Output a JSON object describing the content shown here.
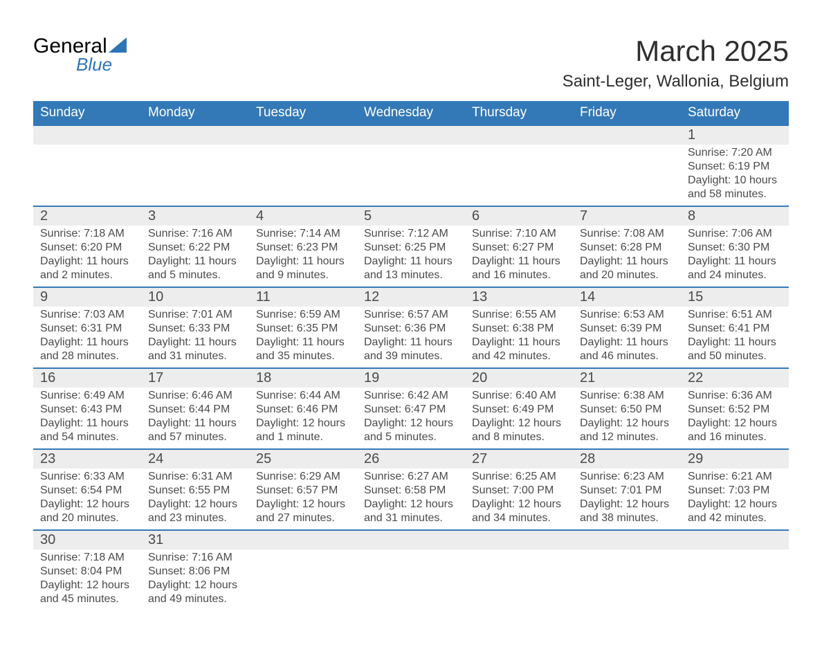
{
  "logo": {
    "text1": "General",
    "text2": "Blue"
  },
  "header": {
    "month_title": "March 2025",
    "location": "Saint-Leger, Wallonia, Belgium"
  },
  "colors": {
    "header_bg": "#3379b7",
    "header_text": "#ffffff",
    "daynum_bg": "#ededed",
    "row_border": "#3379b7",
    "text": "#4a4a4a",
    "logo_accent": "#2e75b6"
  },
  "weekdays": [
    "Sunday",
    "Monday",
    "Tuesday",
    "Wednesday",
    "Thursday",
    "Friday",
    "Saturday"
  ],
  "weeks": [
    [
      null,
      null,
      null,
      null,
      null,
      null,
      {
        "n": "1",
        "sr": "Sunrise: 7:20 AM",
        "ss": "Sunset: 6:19 PM",
        "dl1": "Daylight: 10 hours",
        "dl2": "and 58 minutes."
      }
    ],
    [
      {
        "n": "2",
        "sr": "Sunrise: 7:18 AM",
        "ss": "Sunset: 6:20 PM",
        "dl1": "Daylight: 11 hours",
        "dl2": "and 2 minutes."
      },
      {
        "n": "3",
        "sr": "Sunrise: 7:16 AM",
        "ss": "Sunset: 6:22 PM",
        "dl1": "Daylight: 11 hours",
        "dl2": "and 5 minutes."
      },
      {
        "n": "4",
        "sr": "Sunrise: 7:14 AM",
        "ss": "Sunset: 6:23 PM",
        "dl1": "Daylight: 11 hours",
        "dl2": "and 9 minutes."
      },
      {
        "n": "5",
        "sr": "Sunrise: 7:12 AM",
        "ss": "Sunset: 6:25 PM",
        "dl1": "Daylight: 11 hours",
        "dl2": "and 13 minutes."
      },
      {
        "n": "6",
        "sr": "Sunrise: 7:10 AM",
        "ss": "Sunset: 6:27 PM",
        "dl1": "Daylight: 11 hours",
        "dl2": "and 16 minutes."
      },
      {
        "n": "7",
        "sr": "Sunrise: 7:08 AM",
        "ss": "Sunset: 6:28 PM",
        "dl1": "Daylight: 11 hours",
        "dl2": "and 20 minutes."
      },
      {
        "n": "8",
        "sr": "Sunrise: 7:06 AM",
        "ss": "Sunset: 6:30 PM",
        "dl1": "Daylight: 11 hours",
        "dl2": "and 24 minutes."
      }
    ],
    [
      {
        "n": "9",
        "sr": "Sunrise: 7:03 AM",
        "ss": "Sunset: 6:31 PM",
        "dl1": "Daylight: 11 hours",
        "dl2": "and 28 minutes."
      },
      {
        "n": "10",
        "sr": "Sunrise: 7:01 AM",
        "ss": "Sunset: 6:33 PM",
        "dl1": "Daylight: 11 hours",
        "dl2": "and 31 minutes."
      },
      {
        "n": "11",
        "sr": "Sunrise: 6:59 AM",
        "ss": "Sunset: 6:35 PM",
        "dl1": "Daylight: 11 hours",
        "dl2": "and 35 minutes."
      },
      {
        "n": "12",
        "sr": "Sunrise: 6:57 AM",
        "ss": "Sunset: 6:36 PM",
        "dl1": "Daylight: 11 hours",
        "dl2": "and 39 minutes."
      },
      {
        "n": "13",
        "sr": "Sunrise: 6:55 AM",
        "ss": "Sunset: 6:38 PM",
        "dl1": "Daylight: 11 hours",
        "dl2": "and 42 minutes."
      },
      {
        "n": "14",
        "sr": "Sunrise: 6:53 AM",
        "ss": "Sunset: 6:39 PM",
        "dl1": "Daylight: 11 hours",
        "dl2": "and 46 minutes."
      },
      {
        "n": "15",
        "sr": "Sunrise: 6:51 AM",
        "ss": "Sunset: 6:41 PM",
        "dl1": "Daylight: 11 hours",
        "dl2": "and 50 minutes."
      }
    ],
    [
      {
        "n": "16",
        "sr": "Sunrise: 6:49 AM",
        "ss": "Sunset: 6:43 PM",
        "dl1": "Daylight: 11 hours",
        "dl2": "and 54 minutes."
      },
      {
        "n": "17",
        "sr": "Sunrise: 6:46 AM",
        "ss": "Sunset: 6:44 PM",
        "dl1": "Daylight: 11 hours",
        "dl2": "and 57 minutes."
      },
      {
        "n": "18",
        "sr": "Sunrise: 6:44 AM",
        "ss": "Sunset: 6:46 PM",
        "dl1": "Daylight: 12 hours",
        "dl2": "and 1 minute."
      },
      {
        "n": "19",
        "sr": "Sunrise: 6:42 AM",
        "ss": "Sunset: 6:47 PM",
        "dl1": "Daylight: 12 hours",
        "dl2": "and 5 minutes."
      },
      {
        "n": "20",
        "sr": "Sunrise: 6:40 AM",
        "ss": "Sunset: 6:49 PM",
        "dl1": "Daylight: 12 hours",
        "dl2": "and 8 minutes."
      },
      {
        "n": "21",
        "sr": "Sunrise: 6:38 AM",
        "ss": "Sunset: 6:50 PM",
        "dl1": "Daylight: 12 hours",
        "dl2": "and 12 minutes."
      },
      {
        "n": "22",
        "sr": "Sunrise: 6:36 AM",
        "ss": "Sunset: 6:52 PM",
        "dl1": "Daylight: 12 hours",
        "dl2": "and 16 minutes."
      }
    ],
    [
      {
        "n": "23",
        "sr": "Sunrise: 6:33 AM",
        "ss": "Sunset: 6:54 PM",
        "dl1": "Daylight: 12 hours",
        "dl2": "and 20 minutes."
      },
      {
        "n": "24",
        "sr": "Sunrise: 6:31 AM",
        "ss": "Sunset: 6:55 PM",
        "dl1": "Daylight: 12 hours",
        "dl2": "and 23 minutes."
      },
      {
        "n": "25",
        "sr": "Sunrise: 6:29 AM",
        "ss": "Sunset: 6:57 PM",
        "dl1": "Daylight: 12 hours",
        "dl2": "and 27 minutes."
      },
      {
        "n": "26",
        "sr": "Sunrise: 6:27 AM",
        "ss": "Sunset: 6:58 PM",
        "dl1": "Daylight: 12 hours",
        "dl2": "and 31 minutes."
      },
      {
        "n": "27",
        "sr": "Sunrise: 6:25 AM",
        "ss": "Sunset: 7:00 PM",
        "dl1": "Daylight: 12 hours",
        "dl2": "and 34 minutes."
      },
      {
        "n": "28",
        "sr": "Sunrise: 6:23 AM",
        "ss": "Sunset: 7:01 PM",
        "dl1": "Daylight: 12 hours",
        "dl2": "and 38 minutes."
      },
      {
        "n": "29",
        "sr": "Sunrise: 6:21 AM",
        "ss": "Sunset: 7:03 PM",
        "dl1": "Daylight: 12 hours",
        "dl2": "and 42 minutes."
      }
    ],
    [
      {
        "n": "30",
        "sr": "Sunrise: 7:18 AM",
        "ss": "Sunset: 8:04 PM",
        "dl1": "Daylight: 12 hours",
        "dl2": "and 45 minutes."
      },
      {
        "n": "31",
        "sr": "Sunrise: 7:16 AM",
        "ss": "Sunset: 8:06 PM",
        "dl1": "Daylight: 12 hours",
        "dl2": "and 49 minutes."
      },
      null,
      null,
      null,
      null,
      null
    ]
  ]
}
